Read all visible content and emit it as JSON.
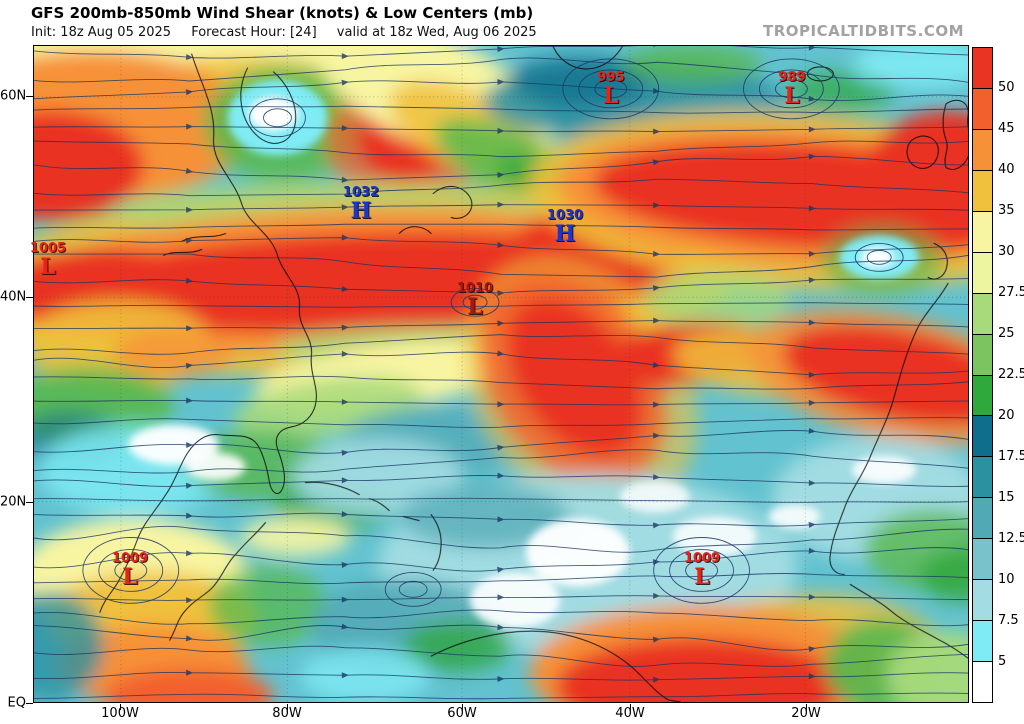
{
  "header": {
    "title": "GFS 200mb-850mb Wind Shear (knots) & Low Centers (mb)",
    "init": "Init: 18z Aug 05 2025",
    "forecast_hour": "Forecast Hour: [24]",
    "valid": "valid at 18z Wed, Aug 06 2025",
    "watermark": "TROPICALTIDBITS.COM"
  },
  "axes": {
    "lat": [
      "60N",
      "40N",
      "20N",
      "EQ"
    ],
    "lon": [
      "100W",
      "80W",
      "60W",
      "40W",
      "20W"
    ]
  },
  "colorbar": {
    "labels": [
      "50",
      "45",
      "40",
      "35",
      "30",
      "27.5",
      "25",
      "22.5",
      "20",
      "17.5",
      "15",
      "12.5",
      "10",
      "7.5",
      "5"
    ],
    "colors": [
      "#e93323",
      "#f2612d",
      "#f69138",
      "#f0c13c",
      "#f8f5a2",
      "#eef5a0",
      "#a8da7b",
      "#7cc45f",
      "#2fa83c",
      "#0f6e8c",
      "#2b91a1",
      "#51a9b5",
      "#79c2cc",
      "#a3dde3",
      "#7febf4",
      "#ffffff"
    ]
  },
  "markers": [
    {
      "value": "995",
      "letter": "L"
    },
    {
      "value": "989",
      "letter": "L"
    },
    {
      "value": "1032",
      "letter": "H"
    },
    {
      "value": "1030",
      "letter": "H"
    },
    {
      "value": "1010",
      "letter": "L"
    },
    {
      "value": "1005",
      "letter": "L"
    },
    {
      "value": "1009",
      "letter": "L"
    },
    {
      "value": "1009",
      "letter": "L"
    }
  ],
  "chart_data": {
    "type": "heatmap",
    "model": "GFS",
    "variable": "200mb-850mb wind shear",
    "units": "knots",
    "overlays": [
      "shear streamlines with arrowheads",
      "surface low/high centers (mb)",
      "coastlines"
    ],
    "init": "18z Aug 05 2025",
    "forecast_hour": 24,
    "valid": "18z Wed, Aug 06 2025",
    "lat_ticks": [
      "EQ",
      "20N",
      "40N",
      "60N"
    ],
    "lon_ticks": [
      "100W",
      "80W",
      "60W",
      "40W",
      "20W"
    ],
    "shear_levels_knots": [
      5,
      7.5,
      10,
      12.5,
      15,
      17.5,
      20,
      22.5,
      25,
      27.5,
      30,
      35,
      40,
      45,
      50
    ],
    "colorbar_colors_top_to_bottom": [
      "#e93323",
      "#f2612d",
      "#f69138",
      "#f0c13c",
      "#f8f5a2",
      "#eef5a0",
      "#a8da7b",
      "#7cc45f",
      "#2fa83c",
      "#0f6e8c",
      "#2b91a1",
      "#51a9b5",
      "#79c2cc",
      "#a3dde3",
      "#7febf4",
      "#ffffff"
    ],
    "pressure_centers": [
      {
        "type": "L",
        "pressure_mb": 995,
        "approx_lat": "60N",
        "approx_lon": "43W"
      },
      {
        "type": "L",
        "pressure_mb": 989,
        "approx_lat": "60N",
        "approx_lon": "22W"
      },
      {
        "type": "H",
        "pressure_mb": 1032,
        "approx_lat": "49N",
        "approx_lon": "71W"
      },
      {
        "type": "H",
        "pressure_mb": 1030,
        "approx_lat": "47N",
        "approx_lon": "48W"
      },
      {
        "type": "L",
        "pressure_mb": 1010,
        "approx_lat": "41N",
        "approx_lon": "59W"
      },
      {
        "type": "L",
        "pressure_mb": 1005,
        "approx_lat": "44N",
        "approx_lon": "109W"
      },
      {
        "type": "L",
        "pressure_mb": 1009,
        "approx_lat": "13N",
        "approx_lon": "99W"
      },
      {
        "type": "L",
        "pressure_mb": 1009,
        "approx_lat": "13N",
        "approx_lon": "31W"
      }
    ],
    "notable_features": [
      ">50kt shear jet band stretching from central North America across the Atlantic to Europe",
      "secondary high-shear tongue descending into northwest Africa",
      "low-shear (<10kt, white/cyan) regions over subtropical Atlantic, Gulf of Mexico and far eastern Atlantic",
      "high shear bands near the equator at both map edges"
    ]
  }
}
